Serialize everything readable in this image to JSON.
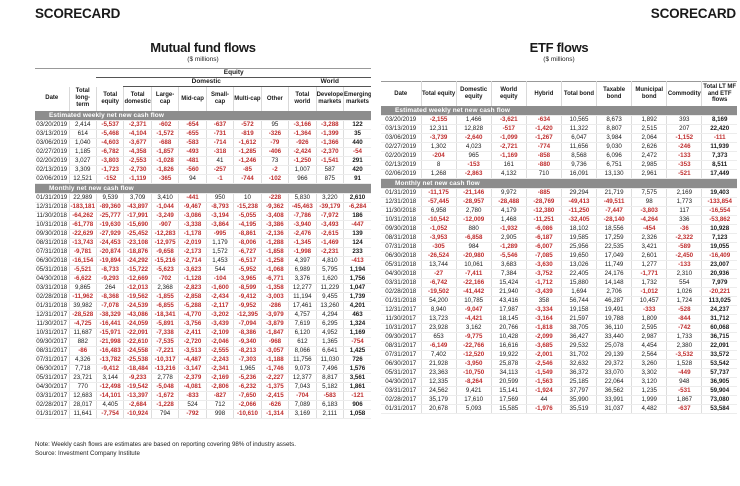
{
  "page": {
    "header_left": "SCORECARD",
    "header_right": "SCORECARD",
    "note": "Note: Weekly cash flows are estimates are based on reporting covering 98% of industry assets.",
    "source": "Source: Investment Company Institute"
  },
  "colors": {
    "negative_value": "#bf2e2e",
    "section_bar": "#8d8d8d"
  },
  "mf": {
    "title": "Mutual fund flows",
    "subtitle": "($ millions)",
    "header_rows": [
      [
        {
          "text": "",
          "span": 2
        },
        {
          "text": "Equity",
          "span": 10,
          "u": true
        }
      ],
      [
        {
          "text": "",
          "span": 3
        },
        {
          "text": "Domestic",
          "span": 6,
          "u": true
        },
        {
          "text": "World",
          "span": 3,
          "u": true
        }
      ]
    ],
    "columns": [
      "Date",
      "Total long-term",
      "Total equity",
      "Total domestic",
      "Large-cap",
      "Mid-cap",
      "Small-cap",
      "Multi-cap",
      "Other",
      "Total world",
      "Developed markets",
      "Emerging markets"
    ],
    "sections": [
      {
        "label": "Estimated weekly net new cash flow",
        "rows": [
          [
            "03/20/2019",
            "2,414",
            "-5,537",
            "-2,371",
            "-602",
            "-654",
            "-637",
            "-572",
            "95",
            "-3,166",
            "-3,288",
            "122"
          ],
          [
            "03/13/2019",
            "614",
            "-5,468",
            "-4,104",
            "-1,572",
            "-655",
            "-731",
            "-819",
            "-326",
            "-1,364",
            "-1,399",
            "35"
          ],
          [
            "03/06/2019",
            "1,040",
            "-4,603",
            "-3,677",
            "-688",
            "-583",
            "-714",
            "-1,612",
            "-79",
            "-926",
            "-1,366",
            "440"
          ],
          [
            "02/27/2019",
            "1,185",
            "-6,782",
            "-4,358",
            "-1,857",
            "-493",
            "-318",
            "-1,285",
            "-406",
            "-2,424",
            "-2,370",
            "-54"
          ],
          [
            "02/20/2019",
            "3,027",
            "-3,803",
            "-2,553",
            "-1,028",
            "-481",
            "41",
            "-1,246",
            "73",
            "-1,250",
            "-1,541",
            "291"
          ],
          [
            "02/13/2019",
            "3,309",
            "-1,723",
            "-2,730",
            "-1,826",
            "-560",
            "-257",
            "-85",
            "-2",
            "1,007",
            "587",
            "420"
          ],
          [
            "02/06/2019",
            "12,521",
            "-152",
            "-1,119",
            "-365",
            "94",
            "-1",
            "-744",
            "-102",
            "966",
            "875",
            "91"
          ]
        ]
      },
      {
        "label": "Monthly net new cash flow",
        "rows": [
          [
            "01/31/2019",
            "22,989",
            "9,539",
            "3,709",
            "3,410",
            "-441",
            "950",
            "10",
            "-228",
            "5,830",
            "3,220",
            "2,610"
          ],
          [
            "12/31/2018",
            "-183,181",
            "-89,360",
            "-43,897",
            "-1,044",
            "-9,467",
            "-8,793",
            "-15,238",
            "-9,362",
            "-45,463",
            "-39,179",
            "-6,284"
          ],
          [
            "11/30/2018",
            "-64,262",
            "-25,777",
            "-17,991",
            "-3,249",
            "-3,086",
            "-3,194",
            "-5,055",
            "-3,408",
            "-7,786",
            "-7,972",
            "186"
          ],
          [
            "10/31/2018",
            "-61,778",
            "-19,630",
            "-15,690",
            "-907",
            "-3,338",
            "-3,864",
            "-4,195",
            "-3,386",
            "-3,940",
            "-3,493",
            "-447"
          ],
          [
            "09/30/2018",
            "-22,629",
            "-27,929",
            "-25,452",
            "-12,283",
            "-1,178",
            "-995",
            "-8,861",
            "-2,136",
            "-2,476",
            "-2,615",
            "139"
          ],
          [
            "08/31/2018",
            "-13,743",
            "-24,453",
            "-23,108",
            "-12,975",
            "-2,019",
            "1,179",
            "-8,006",
            "-1,288",
            "-1,345",
            "-1,469",
            "124"
          ],
          [
            "07/31/2018",
            "-9,781",
            "-20,874",
            "-18,876",
            "-9,658",
            "-2,173",
            "1,572",
            "-6,727",
            "-1,858",
            "-1,998",
            "-2,231",
            "233"
          ],
          [
            "06/30/2018",
            "-16,154",
            "-19,894",
            "-24,292",
            "-15,216",
            "-2,714",
            "1,453",
            "-6,517",
            "-1,258",
            "4,397",
            "4,810",
            "-413"
          ],
          [
            "05/31/2018",
            "-5,521",
            "-8,733",
            "-15,722",
            "-5,623",
            "-3,623",
            "544",
            "-5,952",
            "-1,068",
            "6,989",
            "5,795",
            "1,194"
          ],
          [
            "04/30/2018",
            "-6,622",
            "-9,293",
            "-12,669",
            "-702",
            "-1,128",
            "-104",
            "-3,965",
            "-6,771",
            "3,376",
            "1,620",
            "1,756"
          ],
          [
            "03/31/2018",
            "9,865",
            "264",
            "-12,013",
            "2,368",
            "-2,823",
            "-1,600",
            "-8,599",
            "-1,358",
            "12,277",
            "11,229",
            "1,047"
          ],
          [
            "02/28/2018",
            "-11,962",
            "-8,368",
            "-19,562",
            "-1,855",
            "-2,858",
            "-2,434",
            "-9,412",
            "-3,003",
            "11,194",
            "9,455",
            "1,739"
          ],
          [
            "01/31/2018",
            "39,982",
            "-7,078",
            "-24,539",
            "-6,855",
            "-5,288",
            "-2,117",
            "-9,952",
            "-286",
            "17,461",
            "13,260",
            "4,201"
          ],
          [
            "12/31/2017",
            "-28,528",
            "-38,329",
            "-43,086",
            "-18,341",
            "-4,770",
            "-3,202",
            "-12,395",
            "-3,979",
            "4,757",
            "4,294",
            "463"
          ],
          [
            "11/30/2017",
            "-4,725",
            "-16,441",
            "-24,059",
            "-5,891",
            "-3,756",
            "-3,439",
            "-7,094",
            "-3,879",
            "7,619",
            "6,295",
            "1,324"
          ],
          [
            "10/31/2017",
            "11,687",
            "-15,971",
            "-22,091",
            "-7,338",
            "-2,411",
            "-2,109",
            "-8,386",
            "-1,847",
            "6,120",
            "4,952",
            "1,169"
          ],
          [
            "09/30/2017",
            "882",
            "-21,998",
            "-22,610",
            "-7,535",
            "-2,720",
            "-2,046",
            "-9,340",
            "-968",
            "612",
            "1,365",
            "-754"
          ],
          [
            "08/31/2017",
            "-86",
            "-16,483",
            "-24,558",
            "-7,221",
            "-3,513",
            "-2,555",
            "-8,213",
            "-3,057",
            "8,066",
            "6,641",
            "1,425"
          ],
          [
            "07/31/2017",
            "4,326",
            "-13,782",
            "-25,538",
            "-10,317",
            "-4,487",
            "-2,243",
            "-7,303",
            "-1,188",
            "11,756",
            "11,030",
            "726"
          ],
          [
            "06/30/2017",
            "7,718",
            "-9,412",
            "-18,484",
            "-13,216",
            "-3,147",
            "-2,341",
            "1,965",
            "-1,746",
            "9,073",
            "7,496",
            "1,576"
          ],
          [
            "05/31/2017",
            "23,721",
            "3,144",
            "-9,233",
            "2,778",
            "-2,379",
            "-2,169",
            "-5,236",
            "-2,227",
            "12,377",
            "8,817",
            "3,561"
          ],
          [
            "04/30/2017",
            "770",
            "-12,498",
            "-19,542",
            "-5,048",
            "-4,081",
            "-2,806",
            "-6,232",
            "-1,375",
            "7,043",
            "5,182",
            "1,861"
          ],
          [
            "03/31/2017",
            "12,683",
            "-14,101",
            "-13,397",
            "-1,672",
            "-833",
            "-827",
            "-7,650",
            "-2,415",
            "-704",
            "-583",
            "-121"
          ],
          [
            "02/28/2017",
            "28,017",
            "4,405",
            "-2,684",
            "-1,228",
            "524",
            "712",
            "-2,066",
            "-626",
            "7,089",
            "6,183",
            "906"
          ],
          [
            "01/31/2017",
            "11,641",
            "-7,754",
            "-10,924",
            "794",
            "-792",
            "998",
            "-10,610",
            "-1,314",
            "3,169",
            "2,111",
            "1,058"
          ]
        ]
      }
    ]
  },
  "etf": {
    "title": "ETF flows",
    "subtitle": "($ millions)",
    "header_rows": [],
    "columns": [
      "Date",
      "Total equity",
      "Domestic equity",
      "World equity",
      "Hybrid",
      "Total bond",
      "Taxable bond",
      "Municipal bond",
      "Commodity",
      "Total LT MF and ETF flows"
    ],
    "sections": [
      {
        "label": "Estimated weekly net new cash flow",
        "rows": [
          [
            "03/20/2019",
            "-2,155",
            "1,466",
            "-3,621",
            "-634",
            "10,565",
            "8,673",
            "1,892",
            "393",
            "8,169"
          ],
          [
            "03/13/2019",
            "12,311",
            "12,828",
            "-517",
            "-1,420",
            "11,322",
            "8,807",
            "2,515",
            "207",
            "22,420"
          ],
          [
            "03/06/2019",
            "-3,739",
            "-2,640",
            "-1,099",
            "-1,267",
            "6,047",
            "3,984",
            "2,064",
            "-1,152",
            "-111"
          ],
          [
            "02/27/2019",
            "1,302",
            "4,023",
            "-2,721",
            "-774",
            "11,656",
            "9,030",
            "2,626",
            "-246",
            "11,939"
          ],
          [
            "02/20/2019",
            "-204",
            "965",
            "-1,169",
            "-858",
            "8,568",
            "6,096",
            "2,472",
            "-133",
            "7,373"
          ],
          [
            "02/13/2019",
            "8",
            "-153",
            "161",
            "-880",
            "9,736",
            "6,751",
            "2,985",
            "-353",
            "8,511"
          ],
          [
            "02/06/2019",
            "1,268",
            "-2,863",
            "4,132",
            "710",
            "16,091",
            "13,130",
            "2,961",
            "-521",
            "17,449"
          ]
        ]
      },
      {
        "label": "Monthly net new cash flow",
        "rows": [
          [
            "01/31/2019",
            "-11,175",
            "-21,146",
            "9,972",
            "-885",
            "29,294",
            "21,719",
            "7,575",
            "2,169",
            "19,403"
          ],
          [
            "12/31/2018",
            "-57,445",
            "-28,957",
            "-28,488",
            "-28,769",
            "-49,413",
            "-49,511",
            "98",
            "1,773",
            "-133,854"
          ],
          [
            "11/30/2018",
            "6,958",
            "2,780",
            "4,179",
            "-12,380",
            "-11,250",
            "-7,447",
            "-3,803",
            "117",
            "-16,554"
          ],
          [
            "10/31/2018",
            "-10,542",
            "-12,009",
            "1,468",
            "-11,251",
            "-32,405",
            "-28,140",
            "-4,264",
            "336",
            "-53,862"
          ],
          [
            "09/30/2018",
            "-1,052",
            "880",
            "-1,932",
            "-6,086",
            "18,102",
            "18,556",
            "-454",
            "-36",
            "10,928"
          ],
          [
            "08/31/2018",
            "-3,953",
            "-6,858",
            "2,905",
            "-6,187",
            "19,585",
            "17,259",
            "2,326",
            "-2,322",
            "7,123"
          ],
          [
            "07/31/2018",
            "-305",
            "984",
            "-1,289",
            "-6,007",
            "25,956",
            "22,535",
            "3,421",
            "-589",
            "19,055"
          ],
          [
            "06/30/2018",
            "-26,524",
            "-20,980",
            "-5,546",
            "-7,085",
            "19,650",
            "17,049",
            "2,601",
            "-2,450",
            "-16,409"
          ],
          [
            "05/31/2018",
            "13,744",
            "10,061",
            "3,683",
            "-3,630",
            "13,026",
            "11,749",
            "1,277",
            "-133",
            "23,007"
          ],
          [
            "04/30/2018",
            "-27",
            "-7,411",
            "7,384",
            "-3,752",
            "22,405",
            "24,176",
            "-1,771",
            "2,310",
            "20,936"
          ],
          [
            "03/31/2018",
            "-6,742",
            "-22,166",
            "15,424",
            "-1,712",
            "15,880",
            "14,148",
            "1,732",
            "554",
            "7,979"
          ],
          [
            "02/28/2018",
            "-19,502",
            "-41,442",
            "21,940",
            "-3,439",
            "1,694",
            "2,706",
            "-1,012",
            "1,026",
            "-20,221"
          ],
          [
            "01/31/2018",
            "54,200",
            "10,785",
            "43,416",
            "358",
            "56,744",
            "46,287",
            "10,457",
            "1,724",
            "113,025"
          ],
          [
            "12/31/2017",
            "8,940",
            "-9,047",
            "17,987",
            "-3,334",
            "19,158",
            "19,491",
            "-333",
            "-528",
            "24,237"
          ],
          [
            "11/30/2017",
            "13,723",
            "-4,421",
            "18,145",
            "-3,164",
            "21,597",
            "19,788",
            "1,809",
            "-844",
            "31,712"
          ],
          [
            "10/31/2017",
            "23,928",
            "3,162",
            "20,766",
            "-1,818",
            "38,705",
            "36,110",
            "2,595",
            "-742",
            "60,068"
          ],
          [
            "09/30/2017",
            "653",
            "-9,775",
            "10,428",
            "-2,099",
            "36,427",
            "33,440",
            "2,987",
            "1,733",
            "36,715"
          ],
          [
            "08/31/2017",
            "-6,149",
            "-22,766",
            "16,616",
            "-3,685",
            "29,532",
            "25,078",
            "4,454",
            "2,380",
            "22,091"
          ],
          [
            "07/31/2017",
            "7,402",
            "-12,520",
            "19,922",
            "-2,001",
            "31,702",
            "29,139",
            "2,564",
            "-3,532",
            "33,572"
          ],
          [
            "06/30/2017",
            "21,928",
            "-3,950",
            "25,878",
            "-2,546",
            "32,632",
            "29,372",
            "3,260",
            "1,528",
            "53,542"
          ],
          [
            "05/31/2017",
            "23,363",
            "-10,750",
            "34,113",
            "-1,549",
            "36,372",
            "33,070",
            "3,302",
            "-449",
            "57,737"
          ],
          [
            "04/30/2017",
            "12,335",
            "-8,264",
            "20,599",
            "-1,563",
            "25,185",
            "22,064",
            "3,120",
            "948",
            "36,905"
          ],
          [
            "03/31/2017",
            "24,562",
            "9,421",
            "15,141",
            "-1,924",
            "37,797",
            "36,562",
            "1,235",
            "-531",
            "59,904"
          ],
          [
            "02/28/2017",
            "35,179",
            "17,610",
            "17,569",
            "44",
            "35,990",
            "33,991",
            "1,999",
            "1,867",
            "73,080"
          ],
          [
            "01/31/2017",
            "20,678",
            "5,093",
            "15,585",
            "-1,976",
            "35,519",
            "31,037",
            "4,482",
            "-637",
            "53,584"
          ]
        ]
      }
    ]
  }
}
